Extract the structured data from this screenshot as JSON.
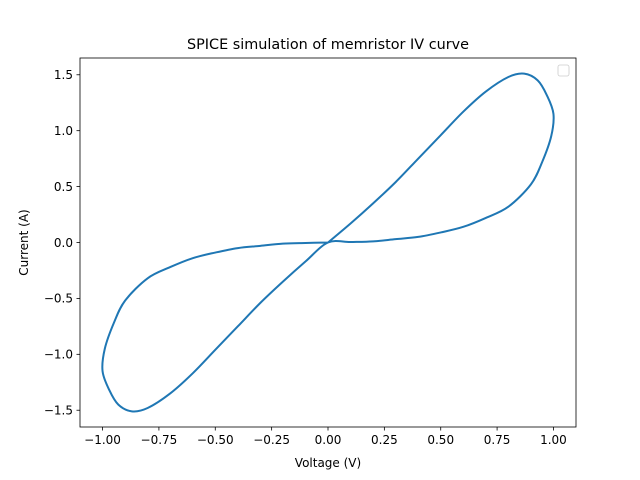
{
  "chart_data": {
    "type": "line",
    "title": "SPICE simulation of memristor IV curve",
    "xlabel": "Voltage (V)",
    "ylabel": "Current (A)",
    "xlim": [
      -1.1,
      1.1
    ],
    "ylim": [
      -1.65,
      1.65
    ],
    "xticks": [
      -1.0,
      -0.75,
      -0.5,
      -0.25,
      0.0,
      0.25,
      0.5,
      0.75,
      1.0
    ],
    "xtick_labels": [
      "−1.00",
      "−0.75",
      "−0.50",
      "−0.25",
      "0.00",
      "0.25",
      "0.50",
      "0.75",
      "1.00"
    ],
    "yticks": [
      -1.5,
      -1.0,
      -0.5,
      0.0,
      0.5,
      1.0,
      1.5
    ],
    "ytick_labels": [
      "−1.5",
      "−1.0",
      "−0.5",
      "0.0",
      "0.5",
      "1.0",
      "1.5"
    ],
    "grid": false,
    "legend": {
      "placement": "top-right",
      "entries": []
    },
    "series": [
      {
        "color": "#1f77b4",
        "x": [
          0.0,
          0.1,
          0.2,
          0.3,
          0.4,
          0.5,
          0.6,
          0.7,
          0.8,
          0.87,
          0.93,
          0.97,
          1.0,
          0.99,
          0.95,
          0.9,
          0.8,
          0.7,
          0.6,
          0.5,
          0.4,
          0.3,
          0.2,
          0.1,
          0.0,
          -0.1,
          -0.2,
          -0.3,
          -0.4,
          -0.5,
          -0.6,
          -0.7,
          -0.8,
          -0.87,
          -0.93,
          -0.97,
          -1.0,
          -0.99,
          -0.95,
          -0.9,
          -0.8,
          -0.7,
          -0.6,
          -0.5,
          -0.4,
          -0.3,
          -0.2,
          -0.1,
          0.0
        ],
        "y": [
          0.0,
          0.17,
          0.35,
          0.54,
          0.75,
          0.96,
          1.17,
          1.35,
          1.48,
          1.51,
          1.45,
          1.32,
          1.15,
          0.95,
          0.72,
          0.52,
          0.32,
          0.22,
          0.14,
          0.09,
          0.05,
          0.03,
          0.01,
          0.004,
          0.0,
          -0.17,
          -0.35,
          -0.54,
          -0.75,
          -0.96,
          -1.17,
          -1.35,
          -1.48,
          -1.51,
          -1.45,
          -1.32,
          -1.15,
          -0.95,
          -0.72,
          -0.52,
          -0.32,
          -0.22,
          -0.14,
          -0.09,
          -0.05,
          -0.03,
          -0.01,
          -0.004,
          0.0
        ]
      }
    ]
  }
}
